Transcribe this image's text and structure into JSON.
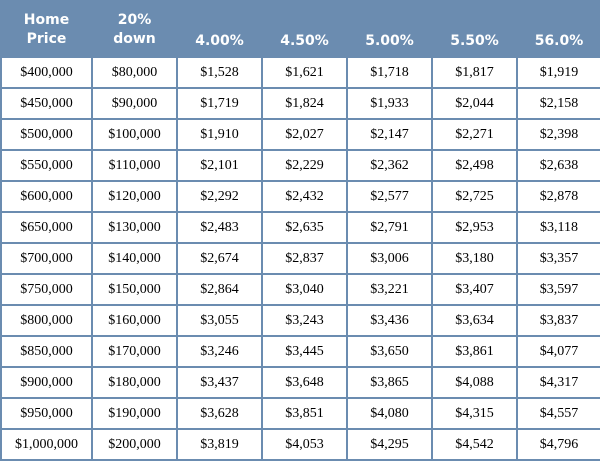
{
  "table": {
    "headers": [
      [
        "Home",
        "Price"
      ],
      [
        "20%",
        "down"
      ],
      [
        "4.00%"
      ],
      [
        "4.50%"
      ],
      [
        "5.00%"
      ],
      [
        "5.50%"
      ],
      [
        "56.0%"
      ]
    ],
    "rows": [
      [
        "$400,000",
        "$80,000",
        "$1,528",
        "$1,621",
        "$1,718",
        "$1,817",
        "$1,919"
      ],
      [
        "$450,000",
        "$90,000",
        "$1,719",
        "$1,824",
        "$1,933",
        "$2,044",
        "$2,158"
      ],
      [
        "$500,000",
        "$100,000",
        "$1,910",
        "$2,027",
        "$2,147",
        "$2,271",
        "$2,398"
      ],
      [
        "$550,000",
        "$110,000",
        "$2,101",
        "$2,229",
        "$2,362",
        "$2,498",
        "$2,638"
      ],
      [
        "$600,000",
        "$120,000",
        "$2,292",
        "$2,432",
        "$2,577",
        "$2,725",
        "$2,878"
      ],
      [
        "$650,000",
        "$130,000",
        "$2,483",
        "$2,635",
        "$2,791",
        "$2,953",
        "$3,118"
      ],
      [
        "$700,000",
        "$140,000",
        "$2,674",
        "$2,837",
        "$3,006",
        "$3,180",
        "$3,357"
      ],
      [
        "$750,000",
        "$150,000",
        "$2,864",
        "$3,040",
        "$3,221",
        "$3,407",
        "$3,597"
      ],
      [
        "$800,000",
        "$160,000",
        "$3,055",
        "$3,243",
        "$3,436",
        "$3,634",
        "$3,837"
      ],
      [
        "$850,000",
        "$170,000",
        "$3,246",
        "$3,445",
        "$3,650",
        "$3,861",
        "$4,077"
      ],
      [
        "$900,000",
        "$180,000",
        "$3,437",
        "$3,648",
        "$3,865",
        "$4,088",
        "$4,317"
      ],
      [
        "$950,000",
        "$190,000",
        "$3,628",
        "$3,851",
        "$4,080",
        "$4,315",
        "$4,557"
      ],
      [
        "$1,000,000",
        "$200,000",
        "$3,819",
        "$4,053",
        "$4,295",
        "$4,542",
        "$4,796"
      ]
    ]
  },
  "colors": {
    "header_background": "#6b8cb0",
    "header_text": "#ffffff",
    "grid_line": "#6b8cb0",
    "cell_text": "#000000"
  }
}
